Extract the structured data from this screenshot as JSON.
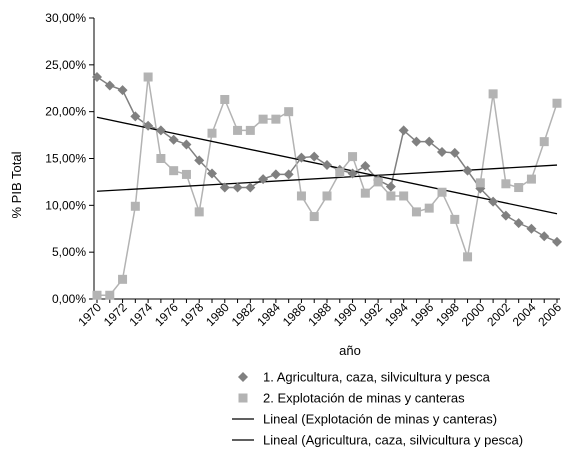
{
  "chart_data": {
    "type": "line",
    "xlabel": "año",
    "ylabel": "% PIB Total",
    "x": [
      1970,
      1971,
      1972,
      1973,
      1974,
      1975,
      1976,
      1977,
      1978,
      1979,
      1980,
      1981,
      1982,
      1983,
      1984,
      1985,
      1986,
      1987,
      1988,
      1989,
      1990,
      1991,
      1992,
      1993,
      1994,
      1995,
      1996,
      1997,
      1998,
      1999,
      2000,
      2001,
      2002,
      2003,
      2004,
      2005,
      2006
    ],
    "x_tick_labels": [
      "1970",
      "1972",
      "1974",
      "1976",
      "1978",
      "1980",
      "1982",
      "1984",
      "1986",
      "1988",
      "1990",
      "1992",
      "1994",
      "1996",
      "1998",
      "2000",
      "2002",
      "2004",
      "2006"
    ],
    "xlim": [
      1970,
      2006
    ],
    "y_tick_labels": [
      "0,00%",
      "5,00%",
      "10,00%",
      "15,00%",
      "20,00%",
      "25,00%",
      "30,00%"
    ],
    "ylim": [
      0,
      30
    ],
    "legend_position": "bottom",
    "series": [
      {
        "name": "1. Agricultura, caza, silvicultura y pesca",
        "marker": "diamond",
        "color": "#808080",
        "values": [
          23.7,
          22.8,
          22.3,
          19.5,
          18.5,
          18.0,
          17.0,
          16.5,
          14.8,
          13.4,
          11.9,
          11.9,
          11.9,
          12.8,
          13.3,
          13.3,
          15.1,
          15.2,
          14.3,
          13.8,
          13.4,
          14.2,
          12.7,
          12.0,
          18.0,
          16.8,
          16.8,
          15.7,
          15.6,
          13.7,
          11.8,
          10.4,
          8.9,
          8.1,
          7.5,
          6.7,
          6.1
        ]
      },
      {
        "name": "2. Explotación de minas y canteras",
        "marker": "square",
        "color": "#b3b3b3",
        "values": [
          0.4,
          0.4,
          2.1,
          9.9,
          23.7,
          15.0,
          13.7,
          13.3,
          9.3,
          17.7,
          21.3,
          18.0,
          18.0,
          19.2,
          19.2,
          20.0,
          11.0,
          8.8,
          11.0,
          13.5,
          15.2,
          11.3,
          12.5,
          11.0,
          11.0,
          9.3,
          9.7,
          11.4,
          8.5,
          4.5,
          12.4,
          21.9,
          12.3,
          11.9,
          12.8,
          16.8,
          20.9
        ]
      }
    ],
    "trendlines": [
      {
        "name": "Lineal (Explotación de minas y canteras)",
        "color": "#000000",
        "start": [
          1970,
          11.5
        ],
        "end": [
          2006,
          14.3
        ]
      },
      {
        "name": "Lineal (Agricultura, caza, silvicultura y pesca)",
        "color": "#000000",
        "start": [
          1970,
          19.4
        ],
        "end": [
          2006,
          9.1
        ]
      }
    ]
  }
}
